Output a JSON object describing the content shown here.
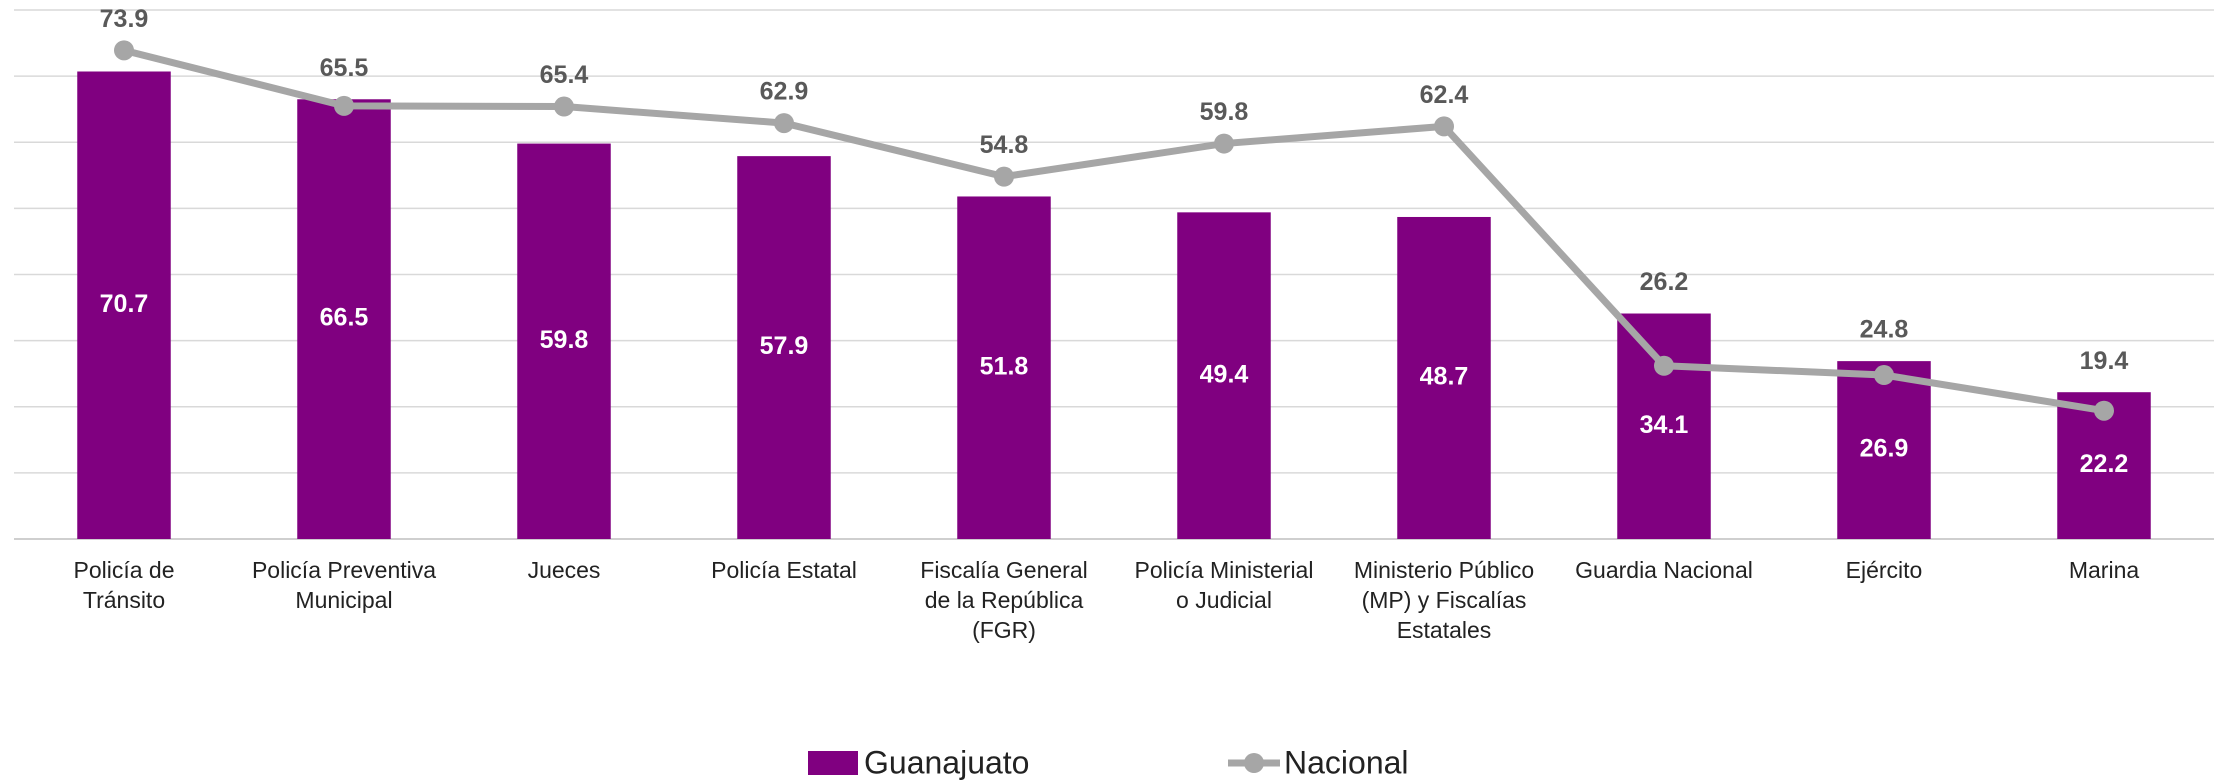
{
  "chart_data": {
    "type": "bar_line",
    "categories": [
      "Policía de\nTránsito",
      "Policía Preventiva\nMunicipal",
      "Jueces",
      "Policía Estatal",
      "Fiscalía General\nde la República\n(FGR)",
      "Policía Ministerial\no Judicial",
      "Ministerio Público\n(MP) y Fiscalías\nEstatales",
      "Guardia Nacional",
      "Ejército",
      "Marina"
    ],
    "series": [
      {
        "name": "Guanajuato",
        "type": "bar",
        "color": "#800080",
        "values": [
          70.7,
          66.5,
          59.8,
          57.9,
          51.8,
          49.4,
          48.7,
          34.1,
          26.9,
          22.2
        ]
      },
      {
        "name": "Nacional",
        "type": "line",
        "color": "#a6a6a6",
        "values": [
          73.9,
          65.5,
          65.4,
          62.9,
          54.8,
          59.8,
          62.4,
          26.2,
          24.8,
          19.4
        ]
      }
    ],
    "ylim": [
      0,
      80
    ],
    "yticks": [
      0,
      10,
      20,
      30,
      40,
      50,
      60,
      70,
      80
    ],
    "grid": true
  }
}
